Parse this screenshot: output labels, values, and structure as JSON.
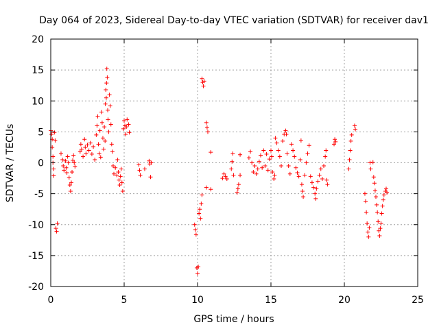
{
  "chart_data": {
    "type": "scatter",
    "title": "Day 064 of 2023, Sidereal Day-to-day VTEC variation (SDTVAR) for receiver dav1",
    "xlabel": "GPS time / hours",
    "ylabel": "SDTVAR / TECUs",
    "xlim": [
      0,
      25
    ],
    "ylim": [
      -20,
      20
    ],
    "xticks": [
      "0",
      "5",
      "10",
      "15",
      "20",
      "25"
    ],
    "yticks": [
      "20",
      "15",
      "10",
      "5",
      "0",
      "-5",
      "-10",
      "-15",
      "-20"
    ],
    "grid": true,
    "marker": "+",
    "color": "#ff0000",
    "series": [
      {
        "name": "dav1",
        "points": [
          [
            0.0,
            5.2
          ],
          [
            0.05,
            4.6
          ],
          [
            0.1,
            3.8
          ],
          [
            0.1,
            2.5
          ],
          [
            0.15,
            1.0
          ],
          [
            0.15,
            0.0
          ],
          [
            0.2,
            -1.0
          ],
          [
            0.2,
            -2.1
          ],
          [
            0.25,
            4.9
          ],
          [
            0.3,
            3.6
          ],
          [
            0.35,
            -10.6
          ],
          [
            0.4,
            -11.1
          ],
          [
            0.45,
            -9.8
          ],
          [
            0.7,
            1.5
          ],
          [
            0.8,
            0.5
          ],
          [
            0.85,
            -0.5
          ],
          [
            0.9,
            -1.2
          ],
          [
            1.0,
            0.3
          ],
          [
            1.05,
            -0.8
          ],
          [
            1.1,
            -1.6
          ],
          [
            1.15,
            1.0
          ],
          [
            1.2,
            0.0
          ],
          [
            1.25,
            -2.4
          ],
          [
            1.3,
            -3.6
          ],
          [
            1.35,
            -4.6
          ],
          [
            1.4,
            -3.2
          ],
          [
            1.45,
            -1.5
          ],
          [
            1.5,
            0.4
          ],
          [
            1.55,
            1.2
          ],
          [
            1.6,
            0.0
          ],
          [
            1.65,
            -0.6
          ],
          [
            2.0,
            1.8
          ],
          [
            2.05,
            3.0
          ],
          [
            2.1,
            2.2
          ],
          [
            2.2,
            1.0
          ],
          [
            2.3,
            3.8
          ],
          [
            2.35,
            2.5
          ],
          [
            2.4,
            1.5
          ],
          [
            2.5,
            2.9
          ],
          [
            2.6,
            2.0
          ],
          [
            2.7,
            3.2
          ],
          [
            2.8,
            1.4
          ],
          [
            2.9,
            2.6
          ],
          [
            3.0,
            0.5
          ],
          [
            3.1,
            4.5
          ],
          [
            3.15,
            6.0
          ],
          [
            3.2,
            7.5
          ],
          [
            3.25,
            3.0
          ],
          [
            3.3,
            1.5
          ],
          [
            3.35,
            5.2
          ],
          [
            3.4,
            0.9
          ],
          [
            3.45,
            8.2
          ],
          [
            3.5,
            6.5
          ],
          [
            3.55,
            4.0
          ],
          [
            3.6,
            2.2
          ],
          [
            3.65,
            5.8
          ],
          [
            3.7,
            3.5
          ],
          [
            3.72,
            9.5
          ],
          [
            3.75,
            11.8
          ],
          [
            3.78,
            10.5
          ],
          [
            3.8,
            12.9
          ],
          [
            3.82,
            15.2
          ],
          [
            3.85,
            13.8
          ],
          [
            3.88,
            8.5
          ],
          [
            3.9,
            7.0
          ],
          [
            3.95,
            5.0
          ],
          [
            4.0,
            11.0
          ],
          [
            4.05,
            9.2
          ],
          [
            4.1,
            6.2
          ],
          [
            4.15,
            3.0
          ],
          [
            4.2,
            1.8
          ],
          [
            4.25,
            -0.5
          ],
          [
            4.3,
            -1.8
          ],
          [
            4.4,
            -0.8
          ],
          [
            4.5,
            -2.0
          ],
          [
            4.55,
            0.5
          ],
          [
            4.6,
            -1.5
          ],
          [
            4.65,
            -2.8
          ],
          [
            4.7,
            -3.6
          ],
          [
            4.75,
            -2.2
          ],
          [
            4.8,
            -1.0
          ],
          [
            4.85,
            -3.2
          ],
          [
            4.9,
            -4.6
          ],
          [
            4.95,
            5.5
          ],
          [
            5.0,
            6.8
          ],
          [
            5.05,
            6.0
          ],
          [
            5.1,
            4.6
          ],
          [
            5.15,
            5.8
          ],
          [
            5.2,
            7.0
          ],
          [
            5.3,
            6.2
          ],
          [
            5.35,
            4.9
          ],
          [
            6.0,
            -0.3
          ],
          [
            6.05,
            -1.2
          ],
          [
            6.1,
            -2.0
          ],
          [
            6.4,
            -1.0
          ],
          [
            6.7,
            0.3
          ],
          [
            6.75,
            -0.2
          ],
          [
            6.8,
            -2.3
          ],
          [
            6.85,
            0.0
          ],
          [
            9.8,
            -10.0
          ],
          [
            9.85,
            -10.8
          ],
          [
            9.9,
            -11.6
          ],
          [
            9.95,
            -17.0
          ],
          [
            10.0,
            -17.9
          ],
          [
            10.05,
            -16.8
          ],
          [
            10.1,
            -8.2
          ],
          [
            10.15,
            -7.5
          ],
          [
            10.2,
            -9.0
          ],
          [
            10.25,
            -6.6
          ],
          [
            10.3,
            -5.2
          ],
          [
            10.3,
            13.6
          ],
          [
            10.35,
            13.0
          ],
          [
            10.4,
            12.4
          ],
          [
            10.45,
            13.2
          ],
          [
            10.6,
            6.5
          ],
          [
            10.65,
            5.7
          ],
          [
            10.7,
            5.0
          ],
          [
            10.6,
            -4.0
          ],
          [
            10.9,
            -4.3
          ],
          [
            10.9,
            1.7
          ],
          [
            11.7,
            -2.5
          ],
          [
            11.8,
            -1.8
          ],
          [
            11.9,
            -2.2
          ],
          [
            12.0,
            -2.6
          ],
          [
            12.3,
            -1.0
          ],
          [
            12.35,
            0.2
          ],
          [
            12.4,
            1.5
          ],
          [
            12.45,
            -2.0
          ],
          [
            12.7,
            -4.8
          ],
          [
            12.75,
            -4.2
          ],
          [
            12.8,
            -3.5
          ],
          [
            12.9,
            -2.0
          ],
          [
            12.9,
            1.3
          ],
          [
            13.5,
            0.8
          ],
          [
            13.6,
            1.8
          ],
          [
            13.7,
            0.0
          ],
          [
            13.8,
            -1.5
          ],
          [
            13.9,
            -0.5
          ],
          [
            14.0,
            -1.8
          ],
          [
            14.1,
            -1.0
          ],
          [
            14.2,
            0.2
          ],
          [
            14.3,
            1.2
          ],
          [
            14.4,
            -0.8
          ],
          [
            14.5,
            2.0
          ],
          [
            14.6,
            -0.5
          ],
          [
            14.7,
            1.4
          ],
          [
            14.8,
            -1.2
          ],
          [
            14.9,
            0.6
          ],
          [
            15.0,
            2.0
          ],
          [
            15.05,
            1.0
          ],
          [
            15.1,
            -1.5
          ],
          [
            15.2,
            -2.6
          ],
          [
            15.25,
            -2.0
          ],
          [
            15.3,
            4.0
          ],
          [
            15.4,
            3.2
          ],
          [
            15.5,
            2.0
          ],
          [
            15.6,
            1.0
          ],
          [
            15.7,
            -0.5
          ],
          [
            15.8,
            3.5
          ],
          [
            15.9,
            4.6
          ],
          [
            16.0,
            5.2
          ],
          [
            16.05,
            4.6
          ],
          [
            16.1,
            1.5
          ],
          [
            16.2,
            -0.5
          ],
          [
            16.3,
            -1.8
          ],
          [
            16.4,
            3.0
          ],
          [
            16.5,
            2.0
          ],
          [
            16.6,
            1.0
          ],
          [
            16.7,
            -0.8
          ],
          [
            16.8,
            -1.6
          ],
          [
            16.9,
            -2.2
          ],
          [
            17.0,
            0.5
          ],
          [
            17.05,
            3.6
          ],
          [
            17.1,
            -3.5
          ],
          [
            17.15,
            -4.6
          ],
          [
            17.2,
            -5.5
          ],
          [
            17.3,
            -2.0
          ],
          [
            17.4,
            0.0
          ],
          [
            17.5,
            1.5
          ],
          [
            17.6,
            2.8
          ],
          [
            17.7,
            -2.2
          ],
          [
            17.8,
            -3.2
          ],
          [
            17.9,
            -4.0
          ],
          [
            18.0,
            -5.0
          ],
          [
            18.05,
            -5.8
          ],
          [
            18.1,
            -4.2
          ],
          [
            18.2,
            -3.0
          ],
          [
            18.3,
            -2.0
          ],
          [
            18.4,
            -1.0
          ],
          [
            18.5,
            -2.6
          ],
          [
            18.6,
            -0.5
          ],
          [
            18.7,
            1.0
          ],
          [
            18.75,
            2.0
          ],
          [
            18.8,
            -2.8
          ],
          [
            18.85,
            -3.5
          ],
          [
            19.3,
            3.0
          ],
          [
            19.35,
            3.8
          ],
          [
            19.4,
            3.4
          ],
          [
            20.3,
            -1.0
          ],
          [
            20.35,
            0.5
          ],
          [
            20.4,
            2.0
          ],
          [
            20.45,
            3.5
          ],
          [
            20.5,
            4.5
          ],
          [
            20.7,
            6.0
          ],
          [
            20.75,
            5.4
          ],
          [
            21.4,
            -5.0
          ],
          [
            21.45,
            -6.2
          ],
          [
            21.5,
            -8.0
          ],
          [
            21.55,
            -9.8
          ],
          [
            21.6,
            -11.2
          ],
          [
            21.65,
            -12.0
          ],
          [
            21.7,
            -10.5
          ],
          [
            21.75,
            0.0
          ],
          [
            21.8,
            -1.0
          ],
          [
            21.95,
            0.1
          ],
          [
            22.0,
            -2.3
          ],
          [
            22.05,
            -3.3
          ],
          [
            22.1,
            -4.5
          ],
          [
            22.15,
            -5.5
          ],
          [
            22.2,
            -6.8
          ],
          [
            22.25,
            -8.0
          ],
          [
            22.3,
            -9.5
          ],
          [
            22.35,
            -11.0
          ],
          [
            22.4,
            -11.8
          ],
          [
            22.45,
            -10.6
          ],
          [
            22.5,
            -9.8
          ],
          [
            22.55,
            -8.2
          ],
          [
            22.6,
            -7.0
          ],
          [
            22.65,
            -6.0
          ],
          [
            22.7,
            -5.2
          ],
          [
            22.8,
            -4.6
          ],
          [
            22.85,
            -4.2
          ],
          [
            22.9,
            -4.8
          ]
        ]
      }
    ]
  }
}
